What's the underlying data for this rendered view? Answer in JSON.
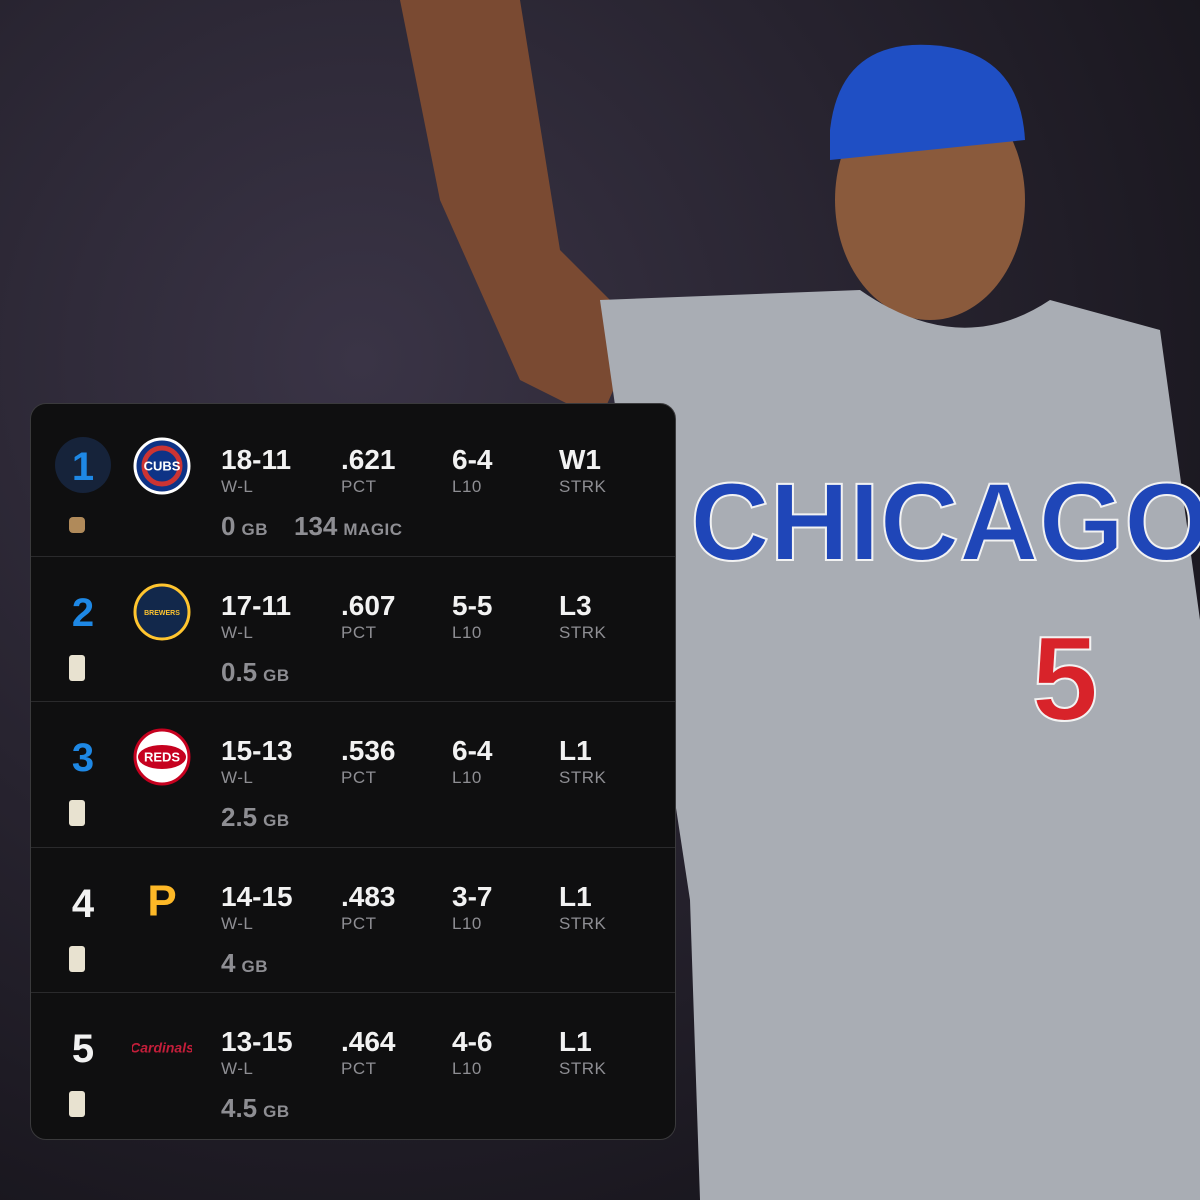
{
  "photo": {
    "jersey_text": "CHICAGO",
    "jersey_number": "5"
  },
  "columns": {
    "record": "W-L",
    "pct": "PCT",
    "last10": "L10",
    "streak": "STRK",
    "gb": "GB",
    "magic": "MAGIC"
  },
  "standings": [
    {
      "rank": "1",
      "logo": "CUBS",
      "record": "18-11",
      "pct": ".621",
      "last10": "6-4",
      "streak": "W1",
      "gb": "0",
      "magic": "134"
    },
    {
      "rank": "2",
      "logo": "BREWERS",
      "record": "17-11",
      "pct": ".607",
      "last10": "5-5",
      "streak": "L3",
      "gb": "0.5"
    },
    {
      "rank": "3",
      "logo": "REDS",
      "record": "15-13",
      "pct": ".536",
      "last10": "6-4",
      "streak": "L1",
      "gb": "2.5"
    },
    {
      "rank": "4",
      "logo": "P",
      "record": "14-15",
      "pct": ".483",
      "last10": "3-7",
      "streak": "L1",
      "gb": "4"
    },
    {
      "rank": "5",
      "logo": "Cardinals",
      "record": "13-15",
      "pct": ".464",
      "last10": "4-6",
      "streak": "L1",
      "gb": "4.5"
    }
  ]
}
